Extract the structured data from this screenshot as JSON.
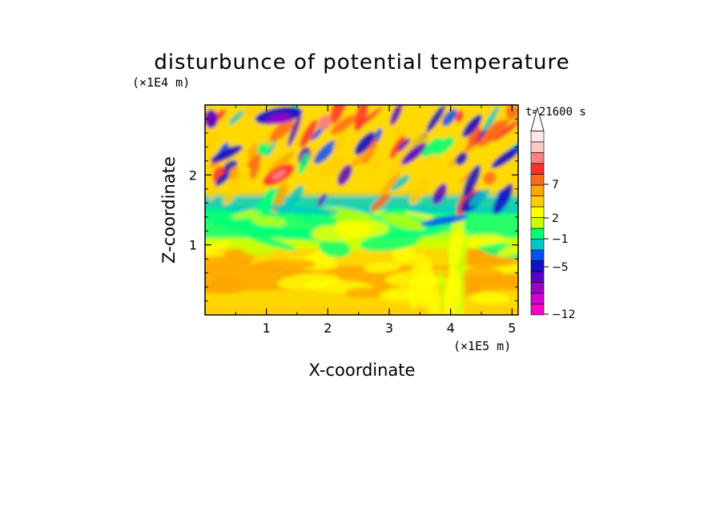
{
  "chart_data": {
    "type": "heatmap",
    "title": "disturbunce of potential temperature",
    "xlabel": "X-coordinate",
    "ylabel": "Z-coordinate",
    "x_unit": "(×1E5 m)",
    "y_unit": "(×1E4 m)",
    "time_label": "t=21600 s",
    "xlim": [
      0,
      5.1
    ],
    "ylim": [
      0,
      3.0
    ],
    "x_ticks": [
      "1",
      "2",
      "3",
      "4",
      "5"
    ],
    "y_ticks": [
      "1",
      "2"
    ],
    "colorbar": {
      "extend": "max",
      "labels": [
        "7",
        "2",
        "−1",
        "−5",
        "−12"
      ],
      "colors": [
        "#ff00c8",
        "#d400d4",
        "#9a00c8",
        "#5a00c8",
        "#1010c8",
        "#0050ff",
        "#00c8c8",
        "#00ff7a",
        "#c8ff00",
        "#ffff00",
        "#ffd000",
        "#ffa500",
        "#ff6a1a",
        "#ff3030",
        "#ff8080",
        "#ffc8c8",
        "#ffe6e6"
      ]
    }
  }
}
